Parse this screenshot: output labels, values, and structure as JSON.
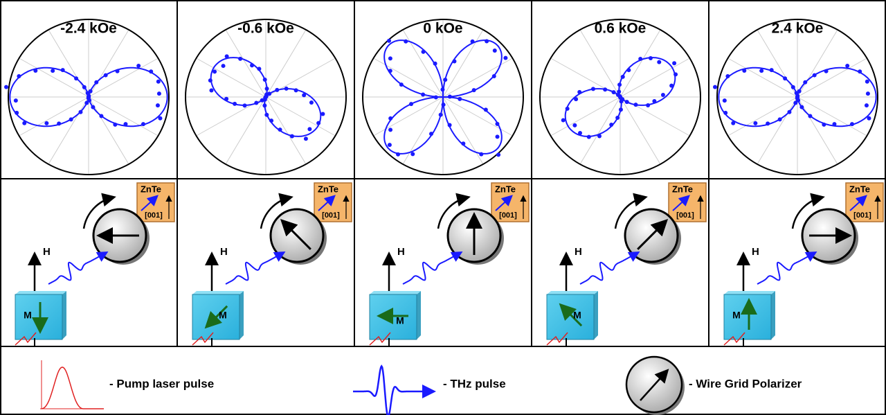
{
  "panels": [
    {
      "title": "-2.4 kOe",
      "crystal": "ZnTe",
      "axis": "[001]",
      "field": "H",
      "magnetization": "M"
    },
    {
      "title": "-0.6 kOe",
      "crystal": "ZnTe",
      "axis": "[001]",
      "field": "H",
      "magnetization": "M"
    },
    {
      "title": "0 kOe",
      "crystal": "ZnTe",
      "axis": "[001]",
      "field": "H",
      "magnetization": "M"
    },
    {
      "title": "0.6 kOe",
      "crystal": "ZnTe",
      "axis": "[001]",
      "field": "H",
      "magnetization": "M"
    },
    {
      "title": "2.4 kOe",
      "crystal": "ZnTe",
      "axis": "[001]",
      "field": "H",
      "magnetization": "M"
    }
  ],
  "legend": [
    "- Pump laser pulse",
    "- THz pulse",
    "- Wire Grid Polarizer"
  ]
}
